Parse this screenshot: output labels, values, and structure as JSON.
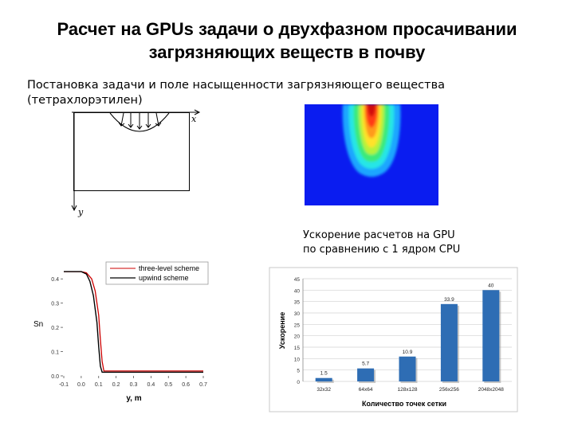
{
  "slide": {
    "title_line1": "Расчет на GPUs задачи о двухфазном просачивании",
    "title_line2": "загрязняющих веществ в почву",
    "subtitle_line1": "Постановка задачи и поле насыщенности загрязняющего вещества",
    "subtitle_line2": "(тетрахлорэтилен)",
    "domain_axis_x": "x",
    "domain_axis_y": "y",
    "speedup_caption_line1": "Ускорение расчетов на GPU",
    "speedup_caption_line2": "по сравнению с 1 ядром CPU"
  },
  "colors": {
    "heatmap_background": "#0a1cf0",
    "bar_fill": "#2e6db4",
    "scheme1_line": "#cc0000",
    "scheme2_line": "#000000"
  },
  "chart_data": [
    {
      "type": "line",
      "xlabel": "y, m",
      "ylabel": "Sn",
      "xlim": [
        -0.1,
        0.7
      ],
      "ylim": [
        0,
        0.45
      ],
      "x_ticks": [
        "-0.1",
        "0.0",
        "0.1",
        "0.2",
        "0.3",
        "0.4",
        "0.5",
        "0.6",
        "0.7"
      ],
      "y_ticks": [
        "0.0",
        "0.1",
        "0.2",
        "0.3",
        "0.4"
      ],
      "legend_position": "top-right",
      "series": [
        {
          "name": "three-level scheme",
          "color": "#cc0000",
          "x": [
            -0.1,
            0.0,
            0.03,
            0.06,
            0.08,
            0.1,
            0.11,
            0.12,
            0.13,
            0.14,
            0.7
          ],
          "y": [
            0.43,
            0.43,
            0.425,
            0.4,
            0.35,
            0.25,
            0.15,
            0.06,
            0.02,
            0.02,
            0.02
          ]
        },
        {
          "name": "upwind scheme",
          "color": "#000000",
          "x": [
            -0.1,
            0.0,
            0.03,
            0.05,
            0.07,
            0.09,
            0.1,
            0.11,
            0.12,
            0.13,
            0.7
          ],
          "y": [
            0.43,
            0.43,
            0.42,
            0.39,
            0.33,
            0.22,
            0.12,
            0.04,
            0.015,
            0.015,
            0.015
          ]
        }
      ]
    },
    {
      "type": "bar",
      "xlabel": "Количество точек сетки",
      "ylabel": "Ускорение",
      "ylim": [
        0,
        45
      ],
      "y_ticks": [
        "0",
        "5",
        "10",
        "15",
        "20",
        "25",
        "30",
        "35",
        "40",
        "45"
      ],
      "categories": [
        "32x32",
        "64x64",
        "128x128",
        "256x256",
        "2048x2048"
      ],
      "values": [
        1.5,
        5.7,
        10.9,
        33.9,
        40
      ],
      "value_labels": [
        "1.5",
        "5.7",
        "10.9",
        "33.9",
        "40"
      ]
    }
  ]
}
